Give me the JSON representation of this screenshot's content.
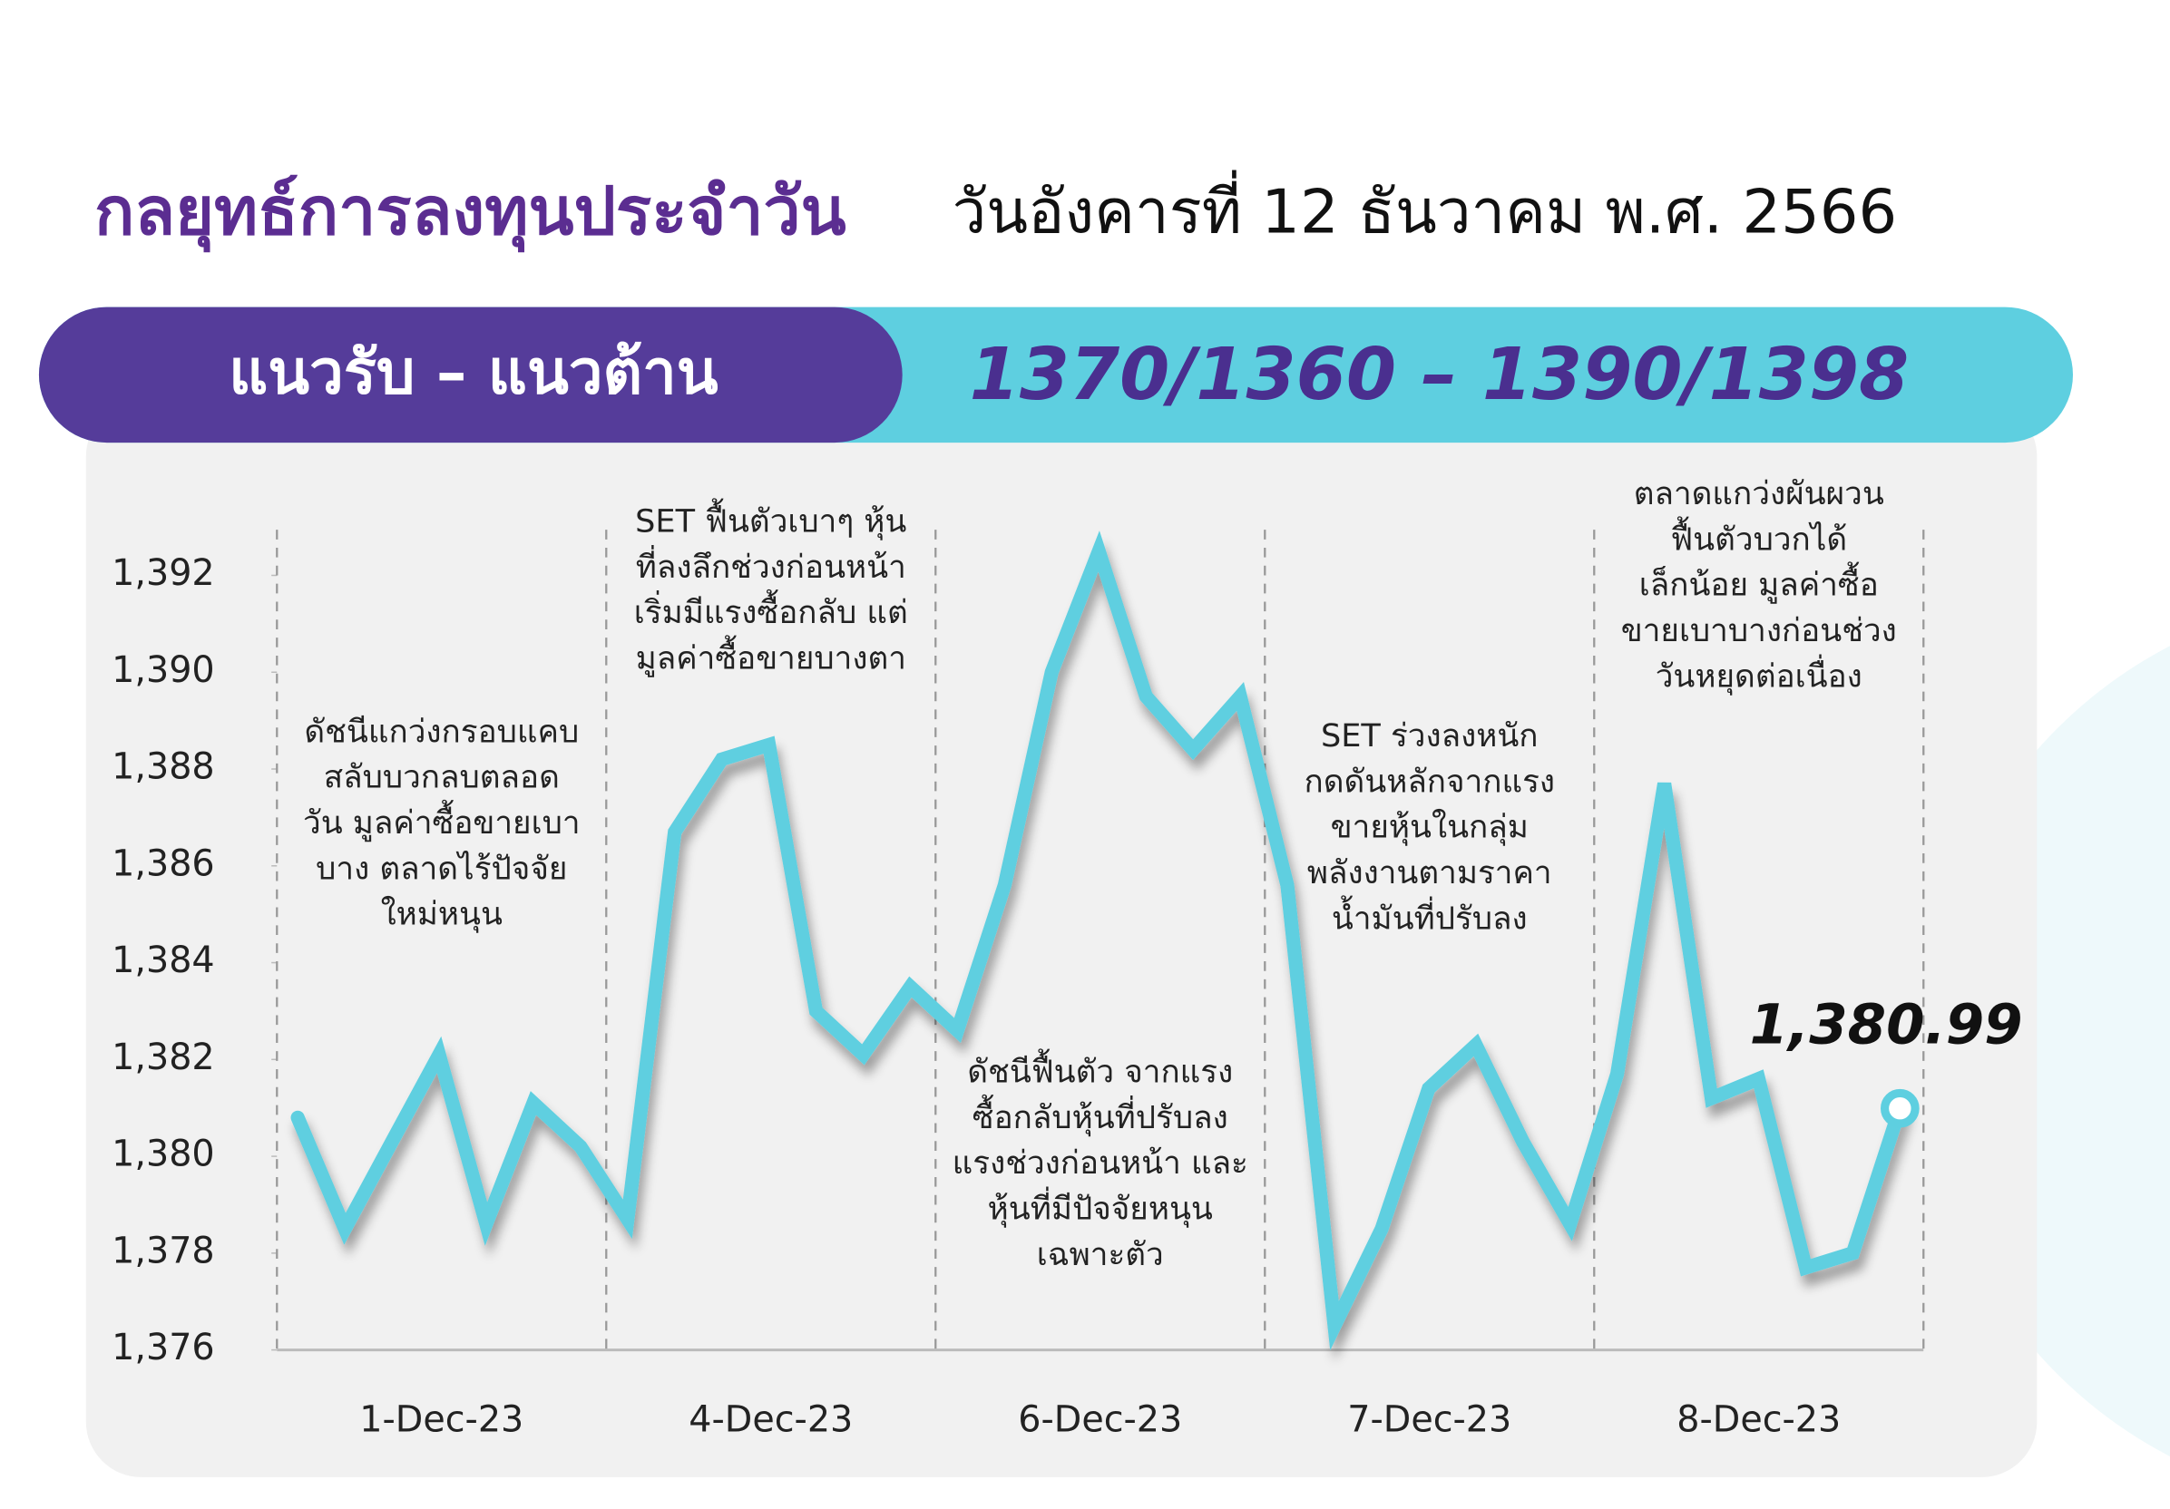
{
  "chart_data": {
    "type": "line",
    "title": "กลยุทธ์การลงทุนประจำวัน",
    "subtitle": "วันอังคารที่ 12 ธันวาคม พ.ศ. 2566",
    "banner": {
      "label": "แนวรับ – แนวต้าน",
      "value": "1370/1360 – 1390/1398"
    },
    "categories": [
      "1-Dec-23",
      "4-Dec-23",
      "6-Dec-23",
      "7-Dec-23",
      "8-Dec-23"
    ],
    "values": [
      [
        1380.8,
        1378.5,
        1380.3,
        1382.1,
        1378.6,
        1381.1,
        1380.2,
        1378.7
      ],
      [
        1386.7,
        1388.2,
        1388.5,
        1383.0,
        1382.1,
        1383.5,
        1382.6
      ],
      [
        1385.6,
        1390.0,
        1392.5,
        1389.5,
        1388.4,
        1389.5
      ],
      [
        1385.6,
        1376.5,
        1378.5,
        1381.4,
        1382.3,
        1380.3,
        1378.6
      ],
      [
        1381.7,
        1387.7,
        1381.2,
        1381.6,
        1377.7,
        1378.0,
        1380.99
      ]
    ],
    "last_value_label": "1,380.99",
    "color": "#5ecfe0",
    "annotations": [
      [
        "ดัชนีแกว่งกรอบแคบ",
        "สลับบวกลบตลอด",
        "วัน มูลค่าซื้อขายเบา",
        "บาง ตลาดไร้ปัจจัย",
        "ใหม่หนุน"
      ],
      [
        "SET ฟื้นตัวเบาๆ หุ้น",
        "ที่ลงลึกช่วงก่อนหน้า",
        "เริ่มมีแรงซื้อกลับ แต่",
        "มูลค่าซื้อขายบางตา"
      ],
      [
        "ดัชนีฟื้นตัว จากแรง",
        "ซื้อกลับหุ้นที่ปรับลง",
        "แรงช่วงก่อนหน้า และ",
        "หุ้นที่มีปัจจัยหนุน",
        "เฉพาะตัว"
      ],
      [
        "SET ร่วงลงหนัก",
        "กดดันหลักจากแรง",
        "ขายหุ้นในกลุ่ม",
        "พลังงานตามราคา",
        "น้ำมันที่ปรับลง"
      ],
      [
        "ตลาดแกว่งผันผวน",
        "ฟื้นตัวบวกได้",
        "เล็กน้อย มูลค่าซื้อ",
        "ขายเบาบางก่อนช่วง",
        "วันหยุดต่อเนื่อง"
      ]
    ],
    "ylim": [
      1376,
      1393
    ],
    "yticks": [
      {
        "value": 1376,
        "label": "1,376"
      },
      {
        "value": 1378,
        "label": "1,378"
      },
      {
        "value": 1380,
        "label": "1,380"
      },
      {
        "value": 1382,
        "label": "1,382"
      },
      {
        "value": 1384,
        "label": "1,384"
      },
      {
        "value": 1386,
        "label": "1,386"
      },
      {
        "value": 1388,
        "label": "1,388"
      },
      {
        "value": 1390,
        "label": "1,390"
      },
      {
        "value": 1392,
        "label": "1,392"
      }
    ]
  }
}
